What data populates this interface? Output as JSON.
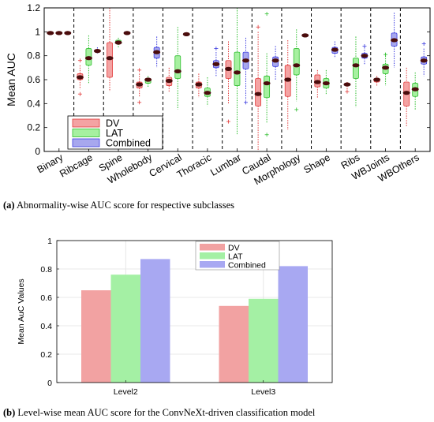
{
  "colors": {
    "dv_face": "#f4a3a3",
    "dv_edge": "#e23b3b",
    "lat_face": "#a6f0a0",
    "lat_edge": "#2fbf2f",
    "comb_face": "#a7a7ee",
    "comb_edge": "#3b3be0",
    "median": "#4a0c0c",
    "bar_dv": "#f2a2a2",
    "bar_lat": "#a4f0a4",
    "bar_comb": "#a8a8f2"
  },
  "captions": {
    "a_tag": "(a)",
    "a_text": " Abnormality-wise AUC score for respective subclasses",
    "b_tag": "(b)",
    "b_text": " Level-wise mean AUC score for the ConvNeXt-driven classification model"
  },
  "chart_data": [
    {
      "type": "box",
      "ylabel": "Mean AUC",
      "ylim": [
        0,
        1.2
      ],
      "yticks": [
        "0",
        "0.2",
        "0.4",
        "0.6",
        "0.8",
        "1",
        "1.2"
      ],
      "legend": {
        "position": "bottom-left",
        "entries": [
          "DV",
          "LAT",
          "Combined"
        ]
      },
      "categories": [
        "Binary",
        "Ribcage",
        "Spine",
        "Wholebody",
        "Cervical",
        "Thoracic",
        "Lumbar",
        "Caudal",
        "Morphology",
        "Shape",
        "Ribs",
        "WBJoints",
        "WBOthers"
      ],
      "series": [
        {
          "name": "DV",
          "boxes": [
            {
              "wl": 0.98,
              "q1": 0.98,
              "med": 0.99,
              "q3": 1.0,
              "wh": 1.0,
              "out": []
            },
            {
              "wl": 0.52,
              "q1": 0.6,
              "med": 0.62,
              "q3": 0.65,
              "wh": 0.72,
              "out": [
                0.48,
                0.76
              ]
            },
            {
              "wl": 0.5,
              "q1": 0.62,
              "med": 0.78,
              "q3": 0.91,
              "wh": 1.2,
              "out": []
            },
            {
              "wl": 0.46,
              "q1": 0.53,
              "med": 0.56,
              "q3": 0.58,
              "wh": 0.65,
              "out": [
                0.41,
                0.68
              ]
            },
            {
              "wl": 0.49,
              "q1": 0.55,
              "med": 0.59,
              "q3": 0.62,
              "wh": 0.7,
              "out": []
            },
            {
              "wl": 0.45,
              "q1": 0.53,
              "med": 0.56,
              "q3": 0.58,
              "wh": 0.65,
              "out": []
            },
            {
              "wl": 0.4,
              "q1": 0.61,
              "med": 0.69,
              "q3": 0.76,
              "wh": 0.92,
              "out": [
                0.25
              ]
            },
            {
              "wl": 0.0,
              "q1": 0.38,
              "med": 0.48,
              "q3": 0.61,
              "wh": 1.0,
              "out": [
                1.04
              ]
            },
            {
              "wl": 0.18,
              "q1": 0.46,
              "med": 0.6,
              "q3": 0.72,
              "wh": 0.93,
              "out": []
            },
            {
              "wl": 0.45,
              "q1": 0.54,
              "med": 0.58,
              "q3": 0.64,
              "wh": 0.68,
              "out": []
            },
            {
              "wl": 0.52,
              "q1": 0.55,
              "med": 0.56,
              "q3": 0.57,
              "wh": 0.58,
              "out": [
                0.5
              ]
            },
            {
              "wl": 0.55,
              "q1": 0.58,
              "med": 0.6,
              "q3": 0.61,
              "wh": 0.63,
              "out": []
            },
            {
              "wl": 0.21,
              "q1": 0.38,
              "med": 0.49,
              "q3": 0.58,
              "wh": 0.7,
              "out": []
            }
          ]
        },
        {
          "name": "LAT",
          "boxes": [
            {
              "wl": 0.98,
              "q1": 0.98,
              "med": 0.99,
              "q3": 1.0,
              "wh": 1.0,
              "out": []
            },
            {
              "wl": 0.57,
              "q1": 0.72,
              "med": 0.78,
              "q3": 0.86,
              "wh": 0.97,
              "out": []
            },
            {
              "wl": 0.87,
              "q1": 0.9,
              "med": 0.91,
              "q3": 0.93,
              "wh": 0.95,
              "out": []
            },
            {
              "wl": 0.54,
              "q1": 0.57,
              "med": 0.6,
              "q3": 0.61,
              "wh": 0.63,
              "out": []
            },
            {
              "wl": 0.35,
              "q1": 0.61,
              "med": 0.67,
              "q3": 0.8,
              "wh": 1.04,
              "out": []
            },
            {
              "wl": 0.38,
              "q1": 0.46,
              "med": 0.49,
              "q3": 0.53,
              "wh": 0.62,
              "out": []
            },
            {
              "wl": 0.14,
              "q1": 0.55,
              "med": 0.66,
              "q3": 0.83,
              "wh": 1.2,
              "out": []
            },
            {
              "wl": 0.24,
              "q1": 0.45,
              "med": 0.57,
              "q3": 0.63,
              "wh": 0.82,
              "out": [
                0.14,
                1.15
              ]
            },
            {
              "wl": 0.42,
              "q1": 0.64,
              "med": 0.72,
              "q3": 0.86,
              "wh": 1.02,
              "out": [
                0.35
              ]
            },
            {
              "wl": 0.48,
              "q1": 0.53,
              "med": 0.57,
              "q3": 0.61,
              "wh": 0.68,
              "out": []
            },
            {
              "wl": 0.37,
              "q1": 0.61,
              "med": 0.72,
              "q3": 0.78,
              "wh": 0.96,
              "out": []
            },
            {
              "wl": 0.55,
              "q1": 0.65,
              "med": 0.7,
              "q3": 0.73,
              "wh": 0.82,
              "out": [
                0.81
              ]
            },
            {
              "wl": 0.35,
              "q1": 0.46,
              "med": 0.52,
              "q3": 0.57,
              "wh": 0.66,
              "out": []
            }
          ]
        },
        {
          "name": "Combined",
          "boxes": [
            {
              "wl": 0.98,
              "q1": 0.98,
              "med": 0.99,
              "q3": 1.0,
              "wh": 1.0,
              "out": []
            },
            {
              "wl": 0.82,
              "q1": 0.83,
              "med": 0.84,
              "q3": 0.85,
              "wh": 0.87,
              "out": []
            },
            {
              "wl": 0.98,
              "q1": 0.99,
              "med": 0.99,
              "q3": 1.0,
              "wh": 1.0,
              "out": []
            },
            {
              "wl": 0.7,
              "q1": 0.78,
              "med": 0.83,
              "q3": 0.87,
              "wh": 0.96,
              "out": []
            },
            {
              "wl": 0.97,
              "q1": 0.97,
              "med": 0.98,
              "q3": 0.99,
              "wh": 0.99,
              "out": []
            },
            {
              "wl": 0.63,
              "q1": 0.7,
              "med": 0.73,
              "q3": 0.76,
              "wh": 0.83,
              "out": [
                0.86
              ]
            },
            {
              "wl": 0.43,
              "q1": 0.69,
              "med": 0.76,
              "q3": 0.83,
              "wh": 0.95,
              "out": [
                0.41
              ]
            },
            {
              "wl": 0.6,
              "q1": 0.71,
              "med": 0.76,
              "q3": 0.79,
              "wh": 0.88,
              "out": []
            },
            {
              "wl": 0.96,
              "q1": 0.97,
              "med": 0.97,
              "q3": 0.98,
              "wh": 0.98,
              "out": []
            },
            {
              "wl": 0.78,
              "q1": 0.82,
              "med": 0.85,
              "q3": 0.87,
              "wh": 0.92,
              "out": []
            },
            {
              "wl": 0.73,
              "q1": 0.78,
              "med": 0.8,
              "q3": 0.82,
              "wh": 0.87,
              "out": [
                0.88
              ]
            },
            {
              "wl": 0.7,
              "q1": 0.88,
              "med": 0.93,
              "q3": 0.99,
              "wh": 1.16,
              "out": []
            },
            {
              "wl": 0.63,
              "q1": 0.73,
              "med": 0.76,
              "q3": 0.79,
              "wh": 0.86,
              "out": [
                0.9
              ]
            }
          ]
        }
      ]
    },
    {
      "type": "bar",
      "ylabel": "Mean AuC Values",
      "ylim": [
        0,
        1
      ],
      "yticks": [
        "0",
        "0.2",
        "0.4",
        "0.6",
        "0.8",
        "1"
      ],
      "categories": [
        "Level2",
        "Level3"
      ],
      "legend": {
        "position": "top-center"
      },
      "series": [
        {
          "name": "DV",
          "values": [
            0.65,
            0.54
          ]
        },
        {
          "name": "LAT",
          "values": [
            0.76,
            0.59
          ]
        },
        {
          "name": "Combined",
          "values": [
            0.87,
            0.82
          ]
        }
      ]
    }
  ]
}
